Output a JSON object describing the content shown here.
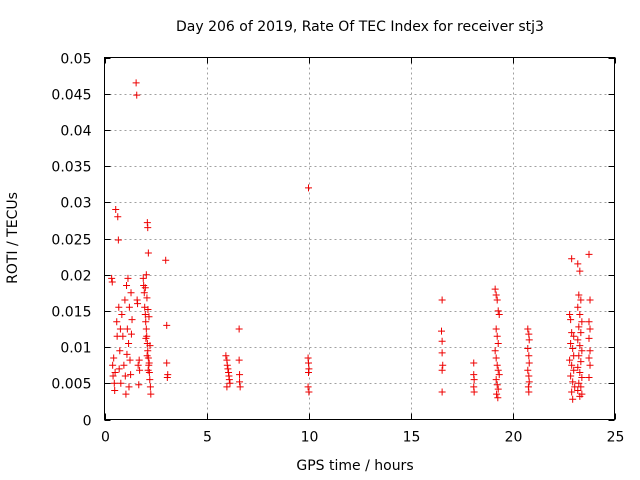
{
  "chart_data": {
    "type": "scatter",
    "title": "Day 206 of 2019, Rate Of TEC Index for receiver stj3",
    "xlabel": "GPS time / hours",
    "ylabel": "ROTI / TECUs",
    "xlim": [
      0,
      25
    ],
    "ylim": [
      0,
      0.05
    ],
    "x_ticks": [
      0,
      5,
      10,
      15,
      20,
      25
    ],
    "x_tick_labels": [
      "0",
      "5",
      "10",
      "15",
      "20",
      "25"
    ],
    "y_ticks": [
      0,
      0.005,
      0.01,
      0.015,
      0.02,
      0.025,
      0.03,
      0.035,
      0.04,
      0.045,
      0.05
    ],
    "y_tick_labels": [
      "0",
      "0.005",
      "0.01",
      "0.015",
      "0.02",
      "0.025",
      "0.03",
      "0.035",
      "0.04",
      "0.045",
      "0.05"
    ],
    "grid": true,
    "marker": "+",
    "color": "#ee0000",
    "series": [
      {
        "name": "ROTI",
        "points": [
          [
            0.35,
            0.0195
          ],
          [
            0.38,
            0.019
          ],
          [
            0.4,
            0.0075
          ],
          [
            0.42,
            0.006
          ],
          [
            0.45,
            0.0085
          ],
          [
            0.48,
            0.005
          ],
          [
            0.5,
            0.004
          ],
          [
            0.52,
            0.0065
          ],
          [
            0.55,
            0.029
          ],
          [
            0.6,
            0.0135
          ],
          [
            0.62,
            0.0115
          ],
          [
            0.65,
            0.028
          ],
          [
            0.68,
            0.0248
          ],
          [
            0.7,
            0.0155
          ],
          [
            0.72,
            0.007
          ],
          [
            0.75,
            0.0095
          ],
          [
            0.78,
            0.0125
          ],
          [
            0.8,
            0.005
          ],
          [
            0.85,
            0.0145
          ],
          [
            0.9,
            0.0115
          ],
          [
            0.95,
            0.0075
          ],
          [
            1.0,
            0.0165
          ],
          [
            1.02,
            0.006
          ],
          [
            1.05,
            0.0035
          ],
          [
            1.08,
            0.0185
          ],
          [
            1.1,
            0.009
          ],
          [
            1.12,
            0.0125
          ],
          [
            1.15,
            0.0195
          ],
          [
            1.18,
            0.0105
          ],
          [
            1.2,
            0.0045
          ],
          [
            1.22,
            0.0155
          ],
          [
            1.25,
            0.0082
          ],
          [
            1.28,
            0.0062
          ],
          [
            1.3,
            0.0175
          ],
          [
            1.32,
            0.0118
          ],
          [
            1.35,
            0.0138
          ],
          [
            1.55,
            0.0465
          ],
          [
            1.58,
            0.0448
          ],
          [
            1.6,
            0.0165
          ],
          [
            1.62,
            0.016
          ],
          [
            1.65,
            0.0075
          ],
          [
            1.68,
            0.0048
          ],
          [
            1.7,
            0.0082
          ],
          [
            1.72,
            0.0068
          ],
          [
            1.9,
            0.0195
          ],
          [
            1.92,
            0.0185
          ],
          [
            1.95,
            0.0175
          ],
          [
            1.97,
            0.0155
          ],
          [
            2.0,
            0.0145
          ],
          [
            2.02,
            0.0135
          ],
          [
            2.05,
            0.0125
          ],
          [
            2.07,
            0.0115
          ],
          [
            2.1,
            0.0105
          ],
          [
            2.12,
            0.0095
          ],
          [
            2.15,
            0.0085
          ],
          [
            2.17,
            0.0075
          ],
          [
            2.2,
            0.0065
          ],
          [
            2.22,
            0.0055
          ],
          [
            2.25,
            0.0045
          ],
          [
            2.27,
            0.0035
          ],
          [
            2.1,
            0.0272
          ],
          [
            2.12,
            0.0265
          ],
          [
            2.15,
            0.023
          ],
          [
            2.05,
            0.02
          ],
          [
            2.0,
            0.0182
          ],
          [
            2.08,
            0.0168
          ],
          [
            2.13,
            0.0152
          ],
          [
            2.18,
            0.0142
          ],
          [
            2.03,
            0.0112
          ],
          [
            2.23,
            0.0102
          ],
          [
            2.09,
            0.0088
          ],
          [
            2.19,
            0.0078
          ],
          [
            2.14,
            0.0068
          ],
          [
            3.0,
            0.022
          ],
          [
            3.05,
            0.013
          ],
          [
            3.05,
            0.0078
          ],
          [
            3.1,
            0.0062
          ],
          [
            3.08,
            0.0058
          ],
          [
            5.95,
            0.0088
          ],
          [
            6.0,
            0.0082
          ],
          [
            6.02,
            0.0075
          ],
          [
            6.05,
            0.007
          ],
          [
            6.08,
            0.0065
          ],
          [
            6.1,
            0.006
          ],
          [
            6.12,
            0.0055
          ],
          [
            6.15,
            0.005
          ],
          [
            6.0,
            0.0045
          ],
          [
            6.6,
            0.0125
          ],
          [
            6.6,
            0.0082
          ],
          [
            6.62,
            0.0062
          ],
          [
            6.62,
            0.0052
          ],
          [
            6.65,
            0.0045
          ],
          [
            10.0,
            0.032
          ],
          [
            9.98,
            0.0085
          ],
          [
            10.0,
            0.0078
          ],
          [
            10.02,
            0.007
          ],
          [
            10.0,
            0.0065
          ],
          [
            9.98,
            0.0045
          ],
          [
            10.02,
            0.0038
          ],
          [
            16.55,
            0.0165
          ],
          [
            16.52,
            0.0122
          ],
          [
            16.55,
            0.0108
          ],
          [
            16.55,
            0.0092
          ],
          [
            16.58,
            0.0075
          ],
          [
            16.55,
            0.0068
          ],
          [
            16.55,
            0.0038
          ],
          [
            18.1,
            0.0078
          ],
          [
            18.1,
            0.0062
          ],
          [
            18.12,
            0.0055
          ],
          [
            18.1,
            0.0045
          ],
          [
            18.12,
            0.0038
          ],
          [
            19.15,
            0.018
          ],
          [
            19.2,
            0.0172
          ],
          [
            19.25,
            0.0165
          ],
          [
            19.3,
            0.015
          ],
          [
            19.35,
            0.0145
          ],
          [
            19.2,
            0.0125
          ],
          [
            19.25,
            0.0115
          ],
          [
            19.3,
            0.0105
          ],
          [
            19.15,
            0.0095
          ],
          [
            19.2,
            0.0085
          ],
          [
            19.25,
            0.0075
          ],
          [
            19.3,
            0.0068
          ],
          [
            19.35,
            0.0062
          ],
          [
            19.2,
            0.0055
          ],
          [
            19.25,
            0.0048
          ],
          [
            19.3,
            0.0042
          ],
          [
            19.22,
            0.0035
          ],
          [
            19.28,
            0.003
          ],
          [
            20.75,
            0.0125
          ],
          [
            20.8,
            0.0118
          ],
          [
            20.82,
            0.011
          ],
          [
            20.75,
            0.0098
          ],
          [
            20.8,
            0.0088
          ],
          [
            20.82,
            0.0078
          ],
          [
            20.75,
            0.0068
          ],
          [
            20.8,
            0.006
          ],
          [
            20.82,
            0.0052
          ],
          [
            20.78,
            0.0045
          ],
          [
            20.8,
            0.0038
          ],
          [
            22.9,
            0.0222
          ],
          [
            22.8,
            0.0145
          ],
          [
            22.85,
            0.0138
          ],
          [
            22.9,
            0.012
          ],
          [
            23.0,
            0.0115
          ],
          [
            22.85,
            0.0105
          ],
          [
            22.95,
            0.0098
          ],
          [
            23.0,
            0.0088
          ],
          [
            22.8,
            0.0082
          ],
          [
            22.9,
            0.0075
          ],
          [
            23.0,
            0.0068
          ],
          [
            22.85,
            0.006
          ],
          [
            22.95,
            0.0052
          ],
          [
            23.05,
            0.0045
          ],
          [
            22.9,
            0.0038
          ],
          [
            22.95,
            0.0028
          ],
          [
            23.2,
            0.0215
          ],
          [
            23.3,
            0.0205
          ],
          [
            23.25,
            0.0172
          ],
          [
            23.35,
            0.0165
          ],
          [
            23.2,
            0.0155
          ],
          [
            23.3,
            0.0145
          ],
          [
            23.4,
            0.0135
          ],
          [
            23.25,
            0.0128
          ],
          [
            23.35,
            0.012
          ],
          [
            23.2,
            0.011
          ],
          [
            23.3,
            0.0102
          ],
          [
            23.4,
            0.0095
          ],
          [
            23.25,
            0.0088
          ],
          [
            23.35,
            0.008
          ],
          [
            23.2,
            0.0072
          ],
          [
            23.3,
            0.0065
          ],
          [
            23.4,
            0.0058
          ],
          [
            23.25,
            0.005
          ],
          [
            23.35,
            0.0045
          ],
          [
            23.2,
            0.004
          ],
          [
            23.4,
            0.0035
          ],
          [
            23.3,
            0.0032
          ],
          [
            23.75,
            0.0228
          ],
          [
            23.8,
            0.0165
          ],
          [
            23.75,
            0.0135
          ],
          [
            23.8,
            0.0125
          ],
          [
            23.75,
            0.0112
          ],
          [
            23.8,
            0.0095
          ],
          [
            23.75,
            0.0085
          ],
          [
            23.8,
            0.0075
          ],
          [
            23.75,
            0.0058
          ]
        ]
      }
    ]
  }
}
